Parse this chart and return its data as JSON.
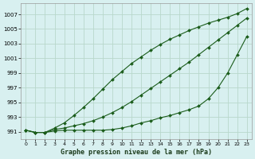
{
  "xlabel": "Graphe pression niveau de la mer (hPa)",
  "ylim": [
    990.0,
    1008.5
  ],
  "xlim": [
    -0.5,
    23.5
  ],
  "yticks": [
    991,
    993,
    995,
    997,
    999,
    1001,
    1003,
    1005,
    1007
  ],
  "xticks": [
    0,
    1,
    2,
    3,
    4,
    5,
    6,
    7,
    8,
    9,
    10,
    11,
    12,
    13,
    14,
    15,
    16,
    17,
    18,
    19,
    20,
    21,
    22,
    23
  ],
  "background_color": "#d8f0f0",
  "grid_color": "#b8d8cc",
  "line_color": "#1a5c1a",
  "line1_y": [
    991.2,
    990.9,
    990.9,
    991.5,
    992.2,
    993.2,
    994.3,
    995.5,
    996.8,
    998.1,
    999.2,
    1000.3,
    1001.2,
    1002.1,
    1002.9,
    1003.6,
    1004.2,
    1004.8,
    1005.3,
    1005.8,
    1006.2,
    1006.6,
    1007.1,
    1007.8
  ],
  "line2_y": [
    991.2,
    990.9,
    990.9,
    991.3,
    991.5,
    991.8,
    992.1,
    992.5,
    993.0,
    993.6,
    994.3,
    995.1,
    996.0,
    996.9,
    997.8,
    998.7,
    999.6,
    1000.5,
    1001.5,
    1002.5,
    1003.5,
    1004.5,
    1005.5,
    1006.5
  ],
  "line3_y": [
    991.2,
    990.9,
    990.9,
    991.1,
    991.2,
    991.2,
    991.2,
    991.2,
    991.2,
    991.3,
    991.5,
    991.8,
    992.2,
    992.5,
    992.9,
    993.2,
    993.6,
    994.0,
    994.5,
    995.5,
    997.0,
    999.0,
    1001.5,
    1004.0
  ],
  "markersize": 2.0,
  "linewidth": 0.8
}
